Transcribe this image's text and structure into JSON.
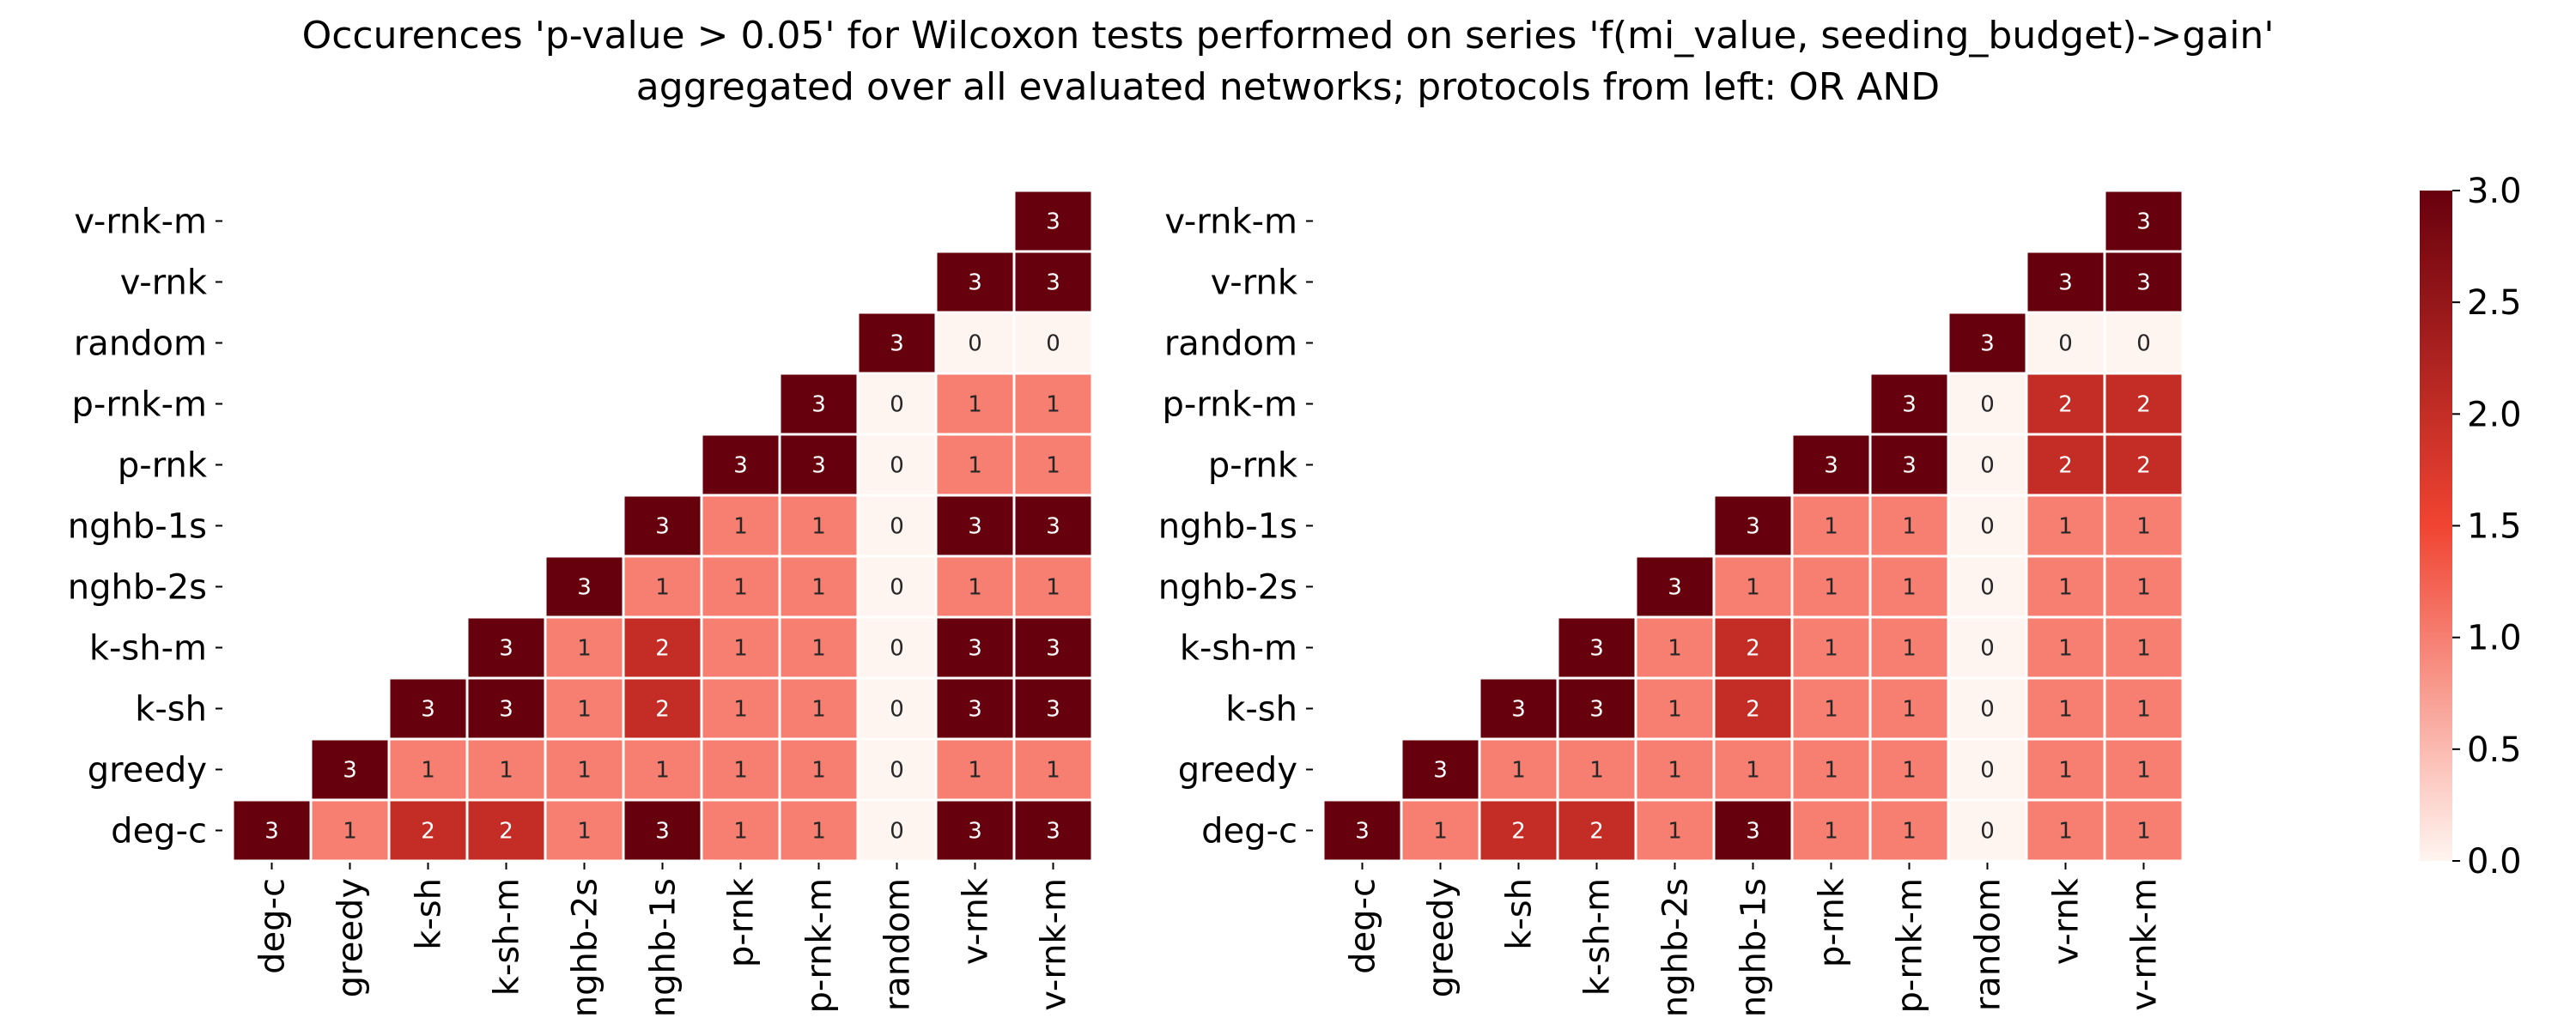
{
  "title": {
    "line1": "Occurences 'p-value > 0.05' for Wilcoxon tests performed on series 'f(mi_value, seeding_budget)->gain'",
    "line2": "aggregated over all evaluated networks; protocols from left: OR AND"
  },
  "colors": {
    "low": "#fff5f0",
    "mid": "#f14432",
    "high": "#67000d",
    "text_on_light": "#262626",
    "text_on_dark": "#ffffff",
    "cell_border": "#ffffff"
  },
  "colorbar": {
    "min": 0,
    "max": 3,
    "ticks": [
      "0.0",
      "0.5",
      "1.0",
      "1.5",
      "2.0",
      "2.5",
      "3.0"
    ]
  },
  "chart_data": [
    {
      "type": "heatmap",
      "protocol": "OR",
      "x_labels": [
        "deg-c",
        "greedy",
        "k-sh",
        "k-sh-m",
        "nghb-2s",
        "nghb-1s",
        "p-rnk",
        "p-rnk-m",
        "random",
        "v-rnk",
        "v-rnk-m"
      ],
      "y_labels": [
        "v-rnk-m",
        "v-rnk",
        "random",
        "p-rnk-m",
        "p-rnk",
        "nghb-1s",
        "nghb-2s",
        "k-sh-m",
        "k-sh",
        "greedy",
        "deg-c"
      ],
      "vmin": 0,
      "vmax": 3,
      "matrix": [
        [
          null,
          null,
          null,
          null,
          null,
          null,
          null,
          null,
          null,
          null,
          3
        ],
        [
          null,
          null,
          null,
          null,
          null,
          null,
          null,
          null,
          null,
          3,
          3
        ],
        [
          null,
          null,
          null,
          null,
          null,
          null,
          null,
          null,
          3,
          0,
          0
        ],
        [
          null,
          null,
          null,
          null,
          null,
          null,
          null,
          3,
          0,
          1,
          1
        ],
        [
          null,
          null,
          null,
          null,
          null,
          null,
          3,
          3,
          0,
          1,
          1
        ],
        [
          null,
          null,
          null,
          null,
          null,
          3,
          1,
          1,
          0,
          3,
          3
        ],
        [
          null,
          null,
          null,
          null,
          3,
          1,
          1,
          1,
          0,
          1,
          1
        ],
        [
          null,
          null,
          null,
          3,
          1,
          2,
          1,
          1,
          0,
          3,
          3
        ],
        [
          null,
          null,
          3,
          3,
          1,
          2,
          1,
          1,
          0,
          3,
          3
        ],
        [
          null,
          3,
          1,
          1,
          1,
          1,
          1,
          1,
          0,
          1,
          1
        ],
        [
          3,
          1,
          2,
          2,
          1,
          3,
          1,
          1,
          0,
          3,
          3
        ]
      ]
    },
    {
      "type": "heatmap",
      "protocol": "AND",
      "x_labels": [
        "deg-c",
        "greedy",
        "k-sh",
        "k-sh-m",
        "nghb-2s",
        "nghb-1s",
        "p-rnk",
        "p-rnk-m",
        "random",
        "v-rnk",
        "v-rnk-m"
      ],
      "y_labels": [
        "v-rnk-m",
        "v-rnk",
        "random",
        "p-rnk-m",
        "p-rnk",
        "nghb-1s",
        "nghb-2s",
        "k-sh-m",
        "k-sh",
        "greedy",
        "deg-c"
      ],
      "vmin": 0,
      "vmax": 3,
      "matrix": [
        [
          null,
          null,
          null,
          null,
          null,
          null,
          null,
          null,
          null,
          null,
          3
        ],
        [
          null,
          null,
          null,
          null,
          null,
          null,
          null,
          null,
          null,
          3,
          3
        ],
        [
          null,
          null,
          null,
          null,
          null,
          null,
          null,
          null,
          3,
          0,
          0
        ],
        [
          null,
          null,
          null,
          null,
          null,
          null,
          null,
          3,
          0,
          2,
          2
        ],
        [
          null,
          null,
          null,
          null,
          null,
          null,
          3,
          3,
          0,
          2,
          2
        ],
        [
          null,
          null,
          null,
          null,
          null,
          3,
          1,
          1,
          0,
          1,
          1
        ],
        [
          null,
          null,
          null,
          null,
          3,
          1,
          1,
          1,
          0,
          1,
          1
        ],
        [
          null,
          null,
          null,
          3,
          1,
          2,
          1,
          1,
          0,
          1,
          1
        ],
        [
          null,
          null,
          3,
          3,
          1,
          2,
          1,
          1,
          0,
          1,
          1
        ],
        [
          null,
          3,
          1,
          1,
          1,
          1,
          1,
          1,
          0,
          1,
          1
        ],
        [
          3,
          1,
          2,
          2,
          1,
          3,
          1,
          1,
          0,
          1,
          1
        ]
      ]
    }
  ]
}
